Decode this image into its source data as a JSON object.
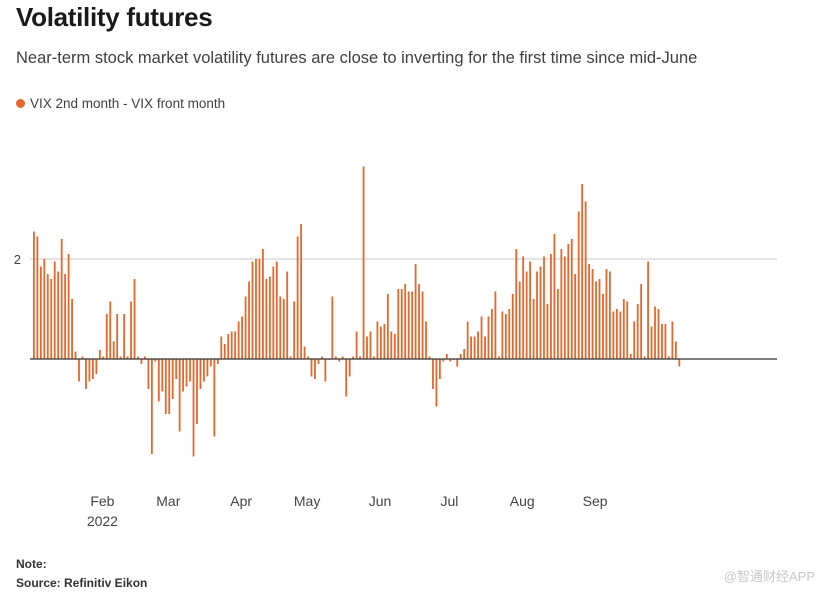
{
  "title": "Volatility futures",
  "subtitle": "Near-term stock market volatility futures are close to inverting for the first time since mid-June",
  "legend": {
    "label": "VIX 2nd month - VIX front month",
    "color": "#e4682c"
  },
  "footer": {
    "note": "Note:",
    "source": "Source: Refinitiv Eikon",
    "watermark": "@智通财经APP"
  },
  "chart_data": {
    "type": "bar",
    "title": "Volatility futures",
    "series": [
      {
        "name": "VIX 2nd month - VIX front month",
        "color": "#e4682c"
      }
    ],
    "ylim": [
      -2.4,
      4.0
    ],
    "yticks": [
      {
        "value": 2,
        "label": "2"
      }
    ],
    "xtick_labels": [
      {
        "label": "Feb",
        "sub": "2022",
        "pos": 20
      },
      {
        "label": "Mar",
        "pos": 39
      },
      {
        "label": "Apr",
        "pos": 60
      },
      {
        "label": "May",
        "pos": 79
      },
      {
        "label": "Jun",
        "pos": 100
      },
      {
        "label": "Jul",
        "pos": 120
      },
      {
        "label": "Aug",
        "pos": 141
      },
      {
        "label": "Sep",
        "pos": 162
      }
    ],
    "values": [
      2.55,
      2.45,
      1.85,
      2.0,
      1.7,
      1.6,
      1.95,
      1.75,
      2.4,
      1.7,
      2.1,
      1.2,
      0.15,
      -0.45,
      0.05,
      -0.6,
      -0.45,
      -0.4,
      -0.3,
      0.18,
      0.05,
      0.9,
      1.15,
      0.35,
      0.9,
      0.05,
      0.9,
      0.05,
      1.15,
      1.6,
      0.05,
      -0.1,
      0.05,
      -0.6,
      -1.9,
      -0.05,
      -0.85,
      -0.65,
      -1.1,
      -1.1,
      -0.8,
      -0.4,
      -1.45,
      -0.65,
      -0.55,
      -0.45,
      -1.95,
      -1.3,
      -0.6,
      -0.45,
      -0.35,
      -0.15,
      -1.55,
      -0.1,
      0.45,
      0.3,
      0.5,
      0.55,
      0.55,
      0.75,
      0.85,
      1.25,
      1.55,
      1.95,
      2.0,
      2.0,
      2.2,
      1.6,
      1.65,
      1.85,
      1.95,
      1.25,
      1.2,
      1.75,
      0.05,
      1.15,
      2.45,
      2.7,
      0.25,
      0.05,
      -0.35,
      -0.4,
      -0.1,
      0.05,
      -0.45,
      0.0,
      1.25,
      0.05,
      -0.05,
      0.05,
      -0.75,
      -0.35,
      0.05,
      0.55,
      0.05,
      3.85,
      0.45,
      0.55,
      0.05,
      0.75,
      0.65,
      0.7,
      1.3,
      0.55,
      0.5,
      1.4,
      1.4,
      1.5,
      1.35,
      1.35,
      1.9,
      1.5,
      1.35,
      0.75,
      0.05,
      -0.6,
      -0.95,
      -0.4,
      -0.05,
      0.1,
      -0.05,
      0.0,
      -0.15,
      0.1,
      0.2,
      0.75,
      0.45,
      0.45,
      0.55,
      0.85,
      0.45,
      0.85,
      1.0,
      1.35,
      0.05,
      0.95,
      0.9,
      1.0,
      1.3,
      2.2,
      1.55,
      2.05,
      1.75,
      1.95,
      1.2,
      1.75,
      1.85,
      2.05,
      1.1,
      2.1,
      2.5,
      1.4,
      2.2,
      2.05,
      2.3,
      2.4,
      1.7,
      2.95,
      3.5,
      3.15,
      1.9,
      1.8,
      1.55,
      1.6,
      1.3,
      1.8,
      1.75,
      0.95,
      1.0,
      0.95,
      1.2,
      1.15,
      0.1,
      0.75,
      1.1,
      1.5,
      0.05,
      1.95,
      0.65,
      1.05,
      1.0,
      0.7,
      0.7,
      0.05,
      0.75,
      0.35,
      -0.15
    ]
  }
}
